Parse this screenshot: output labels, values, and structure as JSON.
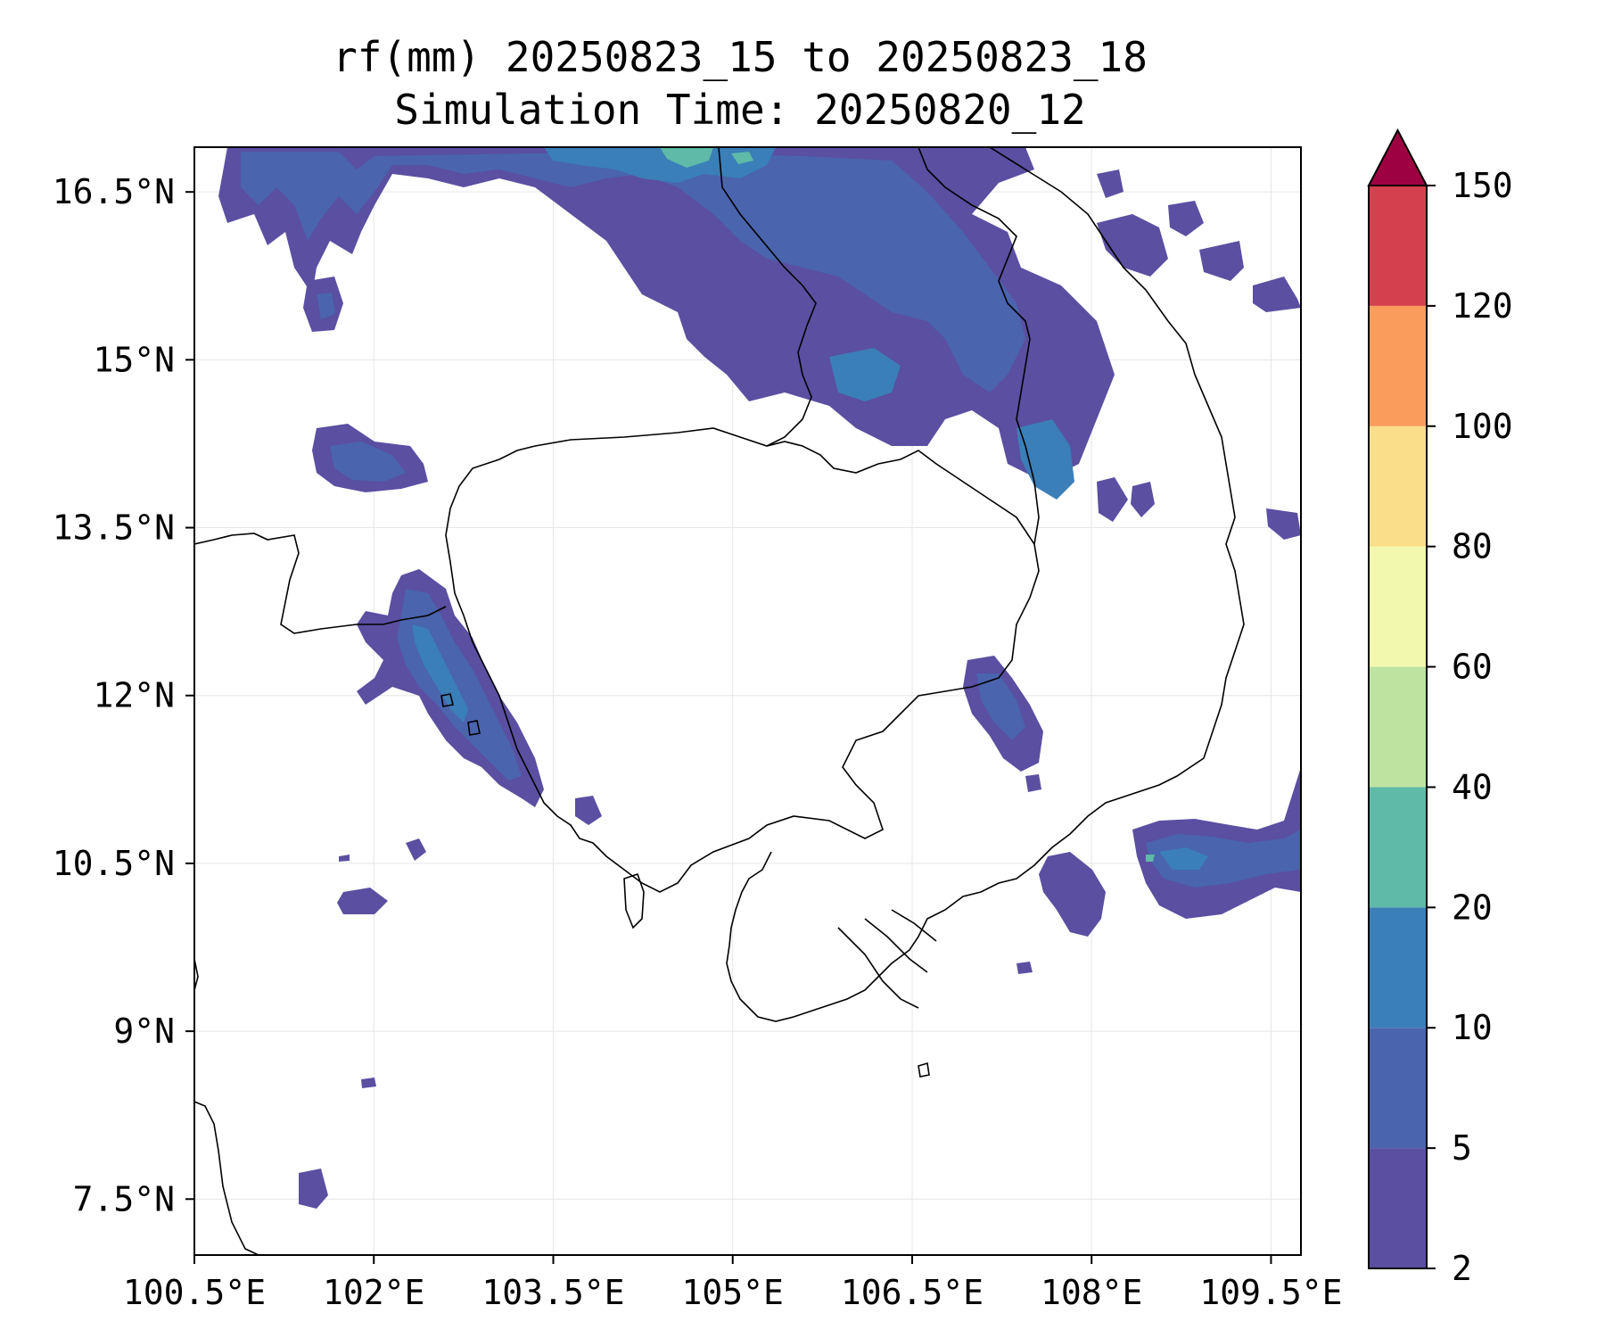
{
  "title": {
    "line1": "rf(mm) 20250823_15 to 20250823_18",
    "line2": "Simulation Time: 20250820_12"
  },
  "map": {
    "lon_range": [
      100.5,
      109.75
    ],
    "lat_range": [
      7.0,
      16.9
    ],
    "lon_ticks": [
      {
        "value": 100.5,
        "label": "100.5°E"
      },
      {
        "value": 102.0,
        "label": "102°E"
      },
      {
        "value": 103.5,
        "label": "103.5°E"
      },
      {
        "value": 105.0,
        "label": "105°E"
      },
      {
        "value": 106.5,
        "label": "106.5°E"
      },
      {
        "value": 108.0,
        "label": "108°E"
      },
      {
        "value": 109.5,
        "label": "109.5°E"
      }
    ],
    "lat_ticks": [
      {
        "value": 16.5,
        "label": "16.5°N"
      },
      {
        "value": 15.0,
        "label": "15°N"
      },
      {
        "value": 13.5,
        "label": "13.5°N"
      },
      {
        "value": 12.0,
        "label": "12°N"
      },
      {
        "value": 10.5,
        "label": "10.5°N"
      },
      {
        "value": 9.0,
        "label": "9°N"
      },
      {
        "value": 7.5,
        "label": "7.5°N"
      }
    ],
    "grid": true
  },
  "colorbar": {
    "levels": [
      "2",
      "5",
      "10",
      "20",
      "40",
      "60",
      "80",
      "100",
      "120",
      "150"
    ],
    "colors": [
      "#5a4fa1",
      "#4a64ad",
      "#3a7fb8",
      "#5fbaa8",
      "#bde3a0",
      "#f2f8ae",
      "#fbde8a",
      "#f99c5c",
      "#d5404e",
      "#9e0142"
    ],
    "extend": "max"
  },
  "fields": {
    "levels_colors": {
      "low": "#5a4fa1",
      "mid": "#4a64ad",
      "high": "#3a7fb8",
      "peak": "#5fbaa8"
    }
  }
}
